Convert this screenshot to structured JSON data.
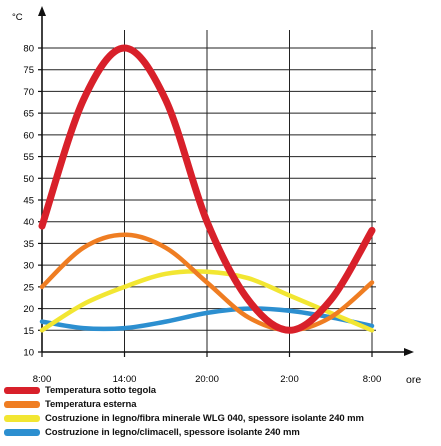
{
  "chart_data": {
    "type": "line",
    "title": "",
    "y_unit": "°C",
    "x_unit": "ore",
    "ylim": [
      10,
      80
    ],
    "y_ticks": [
      10,
      15,
      20,
      25,
      30,
      35,
      40,
      45,
      50,
      55,
      60,
      65,
      70,
      75,
      80
    ],
    "x_ticks": [
      "8:00",
      "14:00",
      "20:00",
      "2:00",
      "8:00"
    ],
    "xlim": [
      0,
      24
    ],
    "grid": true,
    "legend_position": "bottom",
    "series": [
      {
        "name": "Temperatura sotto tegola",
        "color": "#d8202a",
        "x": [
          0,
          3,
          6,
          9,
          12,
          15,
          18,
          21,
          24
        ],
        "y": [
          39,
          68,
          80,
          68,
          40,
          22,
          15,
          22,
          38
        ]
      },
      {
        "name": "Temperatura esterna",
        "color": "#ef7d22",
        "x": [
          0,
          3,
          6,
          9,
          12,
          15,
          18,
          21,
          24
        ],
        "y": [
          25,
          34,
          37,
          34,
          26,
          18,
          15,
          18,
          26
        ]
      },
      {
        "name": "Costruzione in legno/fibra minerale WLG 040, spessore isolante 240 mm",
        "color": "#f2e632",
        "x": [
          0,
          3,
          6,
          9,
          12,
          15,
          18,
          21,
          24
        ],
        "y": [
          15,
          21,
          25,
          28,
          28.5,
          27,
          23,
          19,
          15
        ]
      },
      {
        "name": "Costruzione in legno/climacell, spessore isolante 240 mm",
        "color": "#2c8fd0",
        "x": [
          0,
          3,
          6,
          9,
          12,
          15,
          18,
          21,
          24
        ],
        "y": [
          17,
          15.5,
          15.5,
          17,
          19,
          20,
          19.5,
          18,
          16
        ]
      }
    ]
  }
}
